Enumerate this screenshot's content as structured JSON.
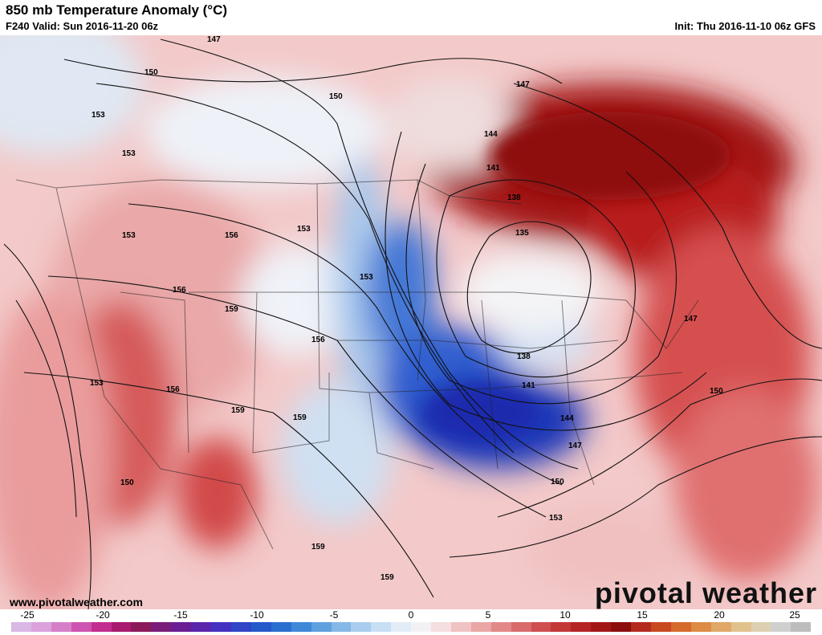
{
  "header": {
    "title": "850 mb Temperature Anomaly (°C)",
    "valid": "F240 Valid: Sun 2016-11-20 06z",
    "init": "Init: Thu 2016-11-10 06z GFS"
  },
  "footer": {
    "website": "www.pivotalweather.com",
    "brand": "pivotal weather"
  },
  "colorbar": {
    "tick_labels": [
      "-25",
      "-20",
      "-15",
      "-10",
      "-5",
      "0",
      "5",
      "10",
      "15",
      "20",
      "25"
    ],
    "colors": [
      "#d9b8e6",
      "#dba2dc",
      "#d67fc9",
      "#cd54b1",
      "#c22d8f",
      "#a8196f",
      "#8c1a5a",
      "#7a1c7a",
      "#6a1e94",
      "#5a25ad",
      "#4431bf",
      "#2f44c7",
      "#2358c9",
      "#2a6fd0",
      "#3f88d8",
      "#5fa0df",
      "#84b8e6",
      "#a8cdee",
      "#c8def3",
      "#e2ecf7",
      "#f2f2f4",
      "#f6dede",
      "#f1c2c2",
      "#eba6a6",
      "#e38888",
      "#d96b6b",
      "#cf4e4e",
      "#c43737",
      "#b52424",
      "#a31616",
      "#8c0d0d",
      "#b32a1d",
      "#c8481f",
      "#d66a2c",
      "#dd8b45",
      "#e0a866",
      "#e2c28c",
      "#ddd0b2",
      "#cfcfcf",
      "#bdbdbd"
    ]
  },
  "contour_labels": [
    "147",
    "150",
    "150",
    "153",
    "153",
    "153",
    "153",
    "153",
    "153",
    "156",
    "156",
    "156",
    "156",
    "159",
    "159",
    "159",
    "159",
    "159",
    "150",
    "147",
    "144",
    "141",
    "138",
    "135",
    "138",
    "141",
    "144",
    "147",
    "150",
    "153",
    "147",
    "150"
  ],
  "colors": {
    "warm_anomaly": "#e06060",
    "strong_warm": "#a01212",
    "cold_anomaly": "#2a55cc",
    "strong_cold": "#1c2fb0"
  }
}
